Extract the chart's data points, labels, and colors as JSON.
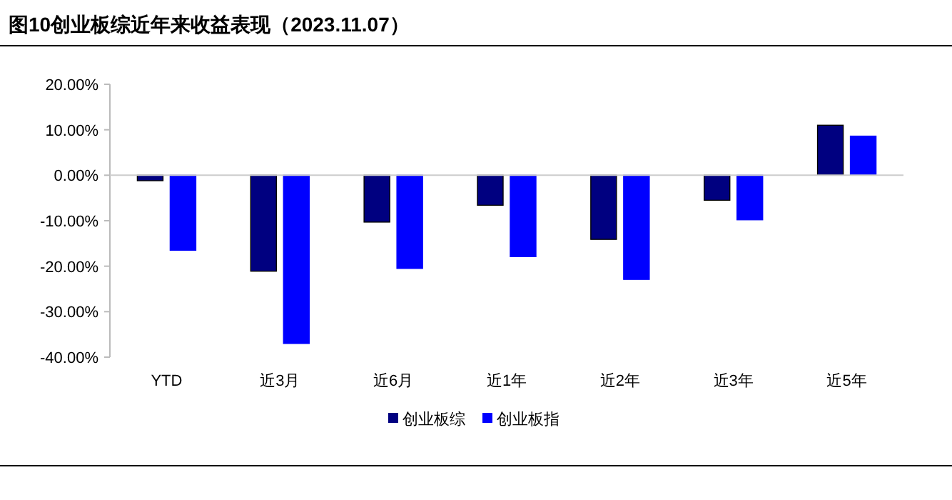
{
  "chart_data": {
    "type": "bar",
    "title": "图10创业板综近年来收益表现（2023.11.07）",
    "categories": [
      "YTD",
      "近3月",
      "近6月",
      "近1年",
      "近2年",
      "近3年",
      "近5年"
    ],
    "series": [
      {
        "name": "创业板综",
        "color": "#000080",
        "values": [
          -1.2,
          -21.1,
          -10.3,
          -6.6,
          -14.1,
          -5.5,
          11.0
        ]
      },
      {
        "name": "创业板指",
        "color": "#0000ff",
        "values": [
          -16.5,
          -37.0,
          -20.5,
          -17.9,
          -22.9,
          -9.8,
          8.6
        ]
      }
    ],
    "ylim": [
      -40,
      20
    ],
    "yticks": [
      {
        "value": 20,
        "label": "20.00%"
      },
      {
        "value": 10,
        "label": "10.00%"
      },
      {
        "value": 0,
        "label": "0.00%"
      },
      {
        "value": -10,
        "label": "-10.00%"
      },
      {
        "value": -20,
        "label": "-20.00%"
      },
      {
        "value": -30,
        "label": "-30.00%"
      },
      {
        "value": -40,
        "label": "-40.00%"
      }
    ],
    "ref_lines": [
      {
        "axis": "y",
        "value": 0,
        "color": "#cccccc"
      }
    ],
    "legend": "bottom"
  }
}
